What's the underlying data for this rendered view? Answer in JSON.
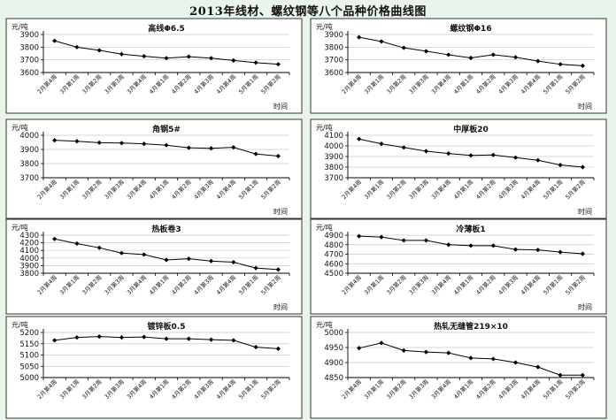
{
  "page_title": "2013年线材、螺纹钢等八个品种价格曲线图",
  "colors": {
    "background": "#e9f4ea",
    "panel": "#ffffff",
    "line": "#000000",
    "grid": "#c8c8c8"
  },
  "chart_data": [
    {
      "type": "line",
      "title": "高线Φ6.5",
      "ylabel": "元/吨",
      "xlabel": "时间",
      "categories": [
        "2月第4周",
        "3月第1周",
        "3月第2周",
        "3月第3周",
        "3月第4周",
        "4月第1周",
        "4月第2周",
        "4月第3周",
        "4月第4周",
        "5月第1周",
        "5月第2周"
      ],
      "yticks": [
        3600,
        3700,
        3800,
        3900
      ],
      "ylim": [
        3600,
        3900
      ],
      "series": [
        {
          "values": [
            3850,
            3800,
            3775,
            3745,
            3728,
            3713,
            3725,
            3713,
            3695,
            3678,
            3665
          ]
        }
      ],
      "grid": true
    },
    {
      "type": "line",
      "title": "螺纹钢Φ16",
      "ylabel": "元/吨",
      "xlabel": "时间",
      "categories": [
        "2月第4周",
        "3月第1周",
        "3月第2周",
        "3月第3周",
        "3月第4周",
        "4月第1周",
        "4月第2周",
        "4月第3周",
        "4月第4周",
        "5月第1周",
        "5月第2周"
      ],
      "yticks": [
        3600,
        3700,
        3800,
        3900
      ],
      "ylim": [
        3600,
        3900
      ],
      "series": [
        {
          "values": [
            3878,
            3845,
            3795,
            3768,
            3740,
            3715,
            3740,
            3720,
            3690,
            3665,
            3653
          ]
        }
      ],
      "grid": true
    },
    {
      "type": "line",
      "title": "角钢5#",
      "ylabel": "元/吨",
      "xlabel": "时间",
      "categories": [
        "2月第4周",
        "3月第1周",
        "3月第2周",
        "3月第3周",
        "3月第4周",
        "4月第1周",
        "4月第2周",
        "4月第3周",
        "4月第4周",
        "5月第1周",
        "5月第2周"
      ],
      "yticks": [
        3700,
        3800,
        3900,
        4000
      ],
      "ylim": [
        3700,
        4000
      ],
      "series": [
        {
          "values": [
            3965,
            3958,
            3948,
            3945,
            3940,
            3930,
            3912,
            3908,
            3915,
            3868,
            3853
          ]
        }
      ],
      "grid": true
    },
    {
      "type": "line",
      "title": "中厚板20",
      "ylabel": "元/吨",
      "xlabel": "时间",
      "categories": [
        "2月第4周",
        "3月第1周",
        "3月第2周",
        "3月第3周",
        "3月第4周",
        "4月第1周",
        "4月第2周",
        "4月第3周",
        "4月第4周",
        "5月第1周",
        "5月第2周"
      ],
      "yticks": [
        3700,
        3800,
        3900,
        4000,
        4100
      ],
      "ylim": [
        3700,
        4100
      ],
      "series": [
        {
          "values": [
            4065,
            4020,
            3985,
            3950,
            3928,
            3910,
            3915,
            3890,
            3865,
            3820,
            3800
          ]
        }
      ],
      "grid": true
    },
    {
      "type": "line",
      "title": "热板卷3",
      "ylabel": "元/吨",
      "xlabel": "时间",
      "categories": [
        "2月第4周",
        "3月第1周",
        "3月第2周",
        "3月第3周",
        "3月第4周",
        "4月第1周",
        "4月第2周",
        "4月第3周",
        "4月第4周",
        "5月第1周",
        "5月第2周"
      ],
      "yticks": [
        3800,
        3900,
        4000,
        4100,
        4200,
        4300
      ],
      "ylim": [
        3800,
        4300
      ],
      "series": [
        {
          "values": [
            4250,
            4190,
            4135,
            4065,
            4045,
            3975,
            3990,
            3960,
            3945,
            3868,
            3848
          ]
        }
      ],
      "grid": true
    },
    {
      "type": "line",
      "title": "冷薄板1",
      "ylabel": "元/吨",
      "xlabel": "时间",
      "categories": [
        "2月第4周",
        "3月第1周",
        "3月第2周",
        "3月第3周",
        "3月第4周",
        "4月第1周",
        "4月第2周",
        "4月第3周",
        "4月第4周",
        "5月第1周",
        "5月第2周"
      ],
      "yticks": [
        4500,
        4600,
        4700,
        4800,
        4900
      ],
      "ylim": [
        4500,
        4900
      ],
      "series": [
        {
          "values": [
            4890,
            4880,
            4845,
            4845,
            4800,
            4790,
            4790,
            4750,
            4745,
            4722,
            4705
          ]
        }
      ],
      "grid": true
    },
    {
      "type": "line",
      "title": "镀锌板0.5",
      "ylabel": "元/吨",
      "xlabel": "",
      "categories": [
        "2月第4周",
        "3月第1周",
        "3月第2周",
        "3月第3周",
        "3月第4周",
        "4月第1周",
        "4月第2周",
        "4月第3周",
        "4月第4周",
        "5月第1周",
        "5月第2周"
      ],
      "yticks": [
        5000,
        5050,
        5100,
        5150,
        5200
      ],
      "ylim": [
        5000,
        5200
      ],
      "series": [
        {
          "values": [
            5165,
            5178,
            5182,
            5178,
            5180,
            5172,
            5172,
            5168,
            5165,
            5135,
            5128
          ]
        }
      ],
      "grid": true
    },
    {
      "type": "line",
      "title": "热轧无缝管219×10",
      "ylabel": "元/吨",
      "xlabel": "",
      "categories": [
        "2月第4周",
        "3月第1周",
        "3月第2周",
        "3月第3周",
        "3月第4周",
        "4月第1周",
        "4月第2周",
        "4月第3周",
        "4月第4周",
        "5月第1周",
        "5月第2周"
      ],
      "yticks": [
        4850,
        4900,
        4950,
        5000
      ],
      "ylim": [
        4850,
        5000
      ],
      "series": [
        {
          "values": [
            4948,
            4965,
            4940,
            4935,
            4932,
            4915,
            4912,
            4900,
            4885,
            4858,
            4858
          ]
        }
      ],
      "grid": true
    }
  ]
}
